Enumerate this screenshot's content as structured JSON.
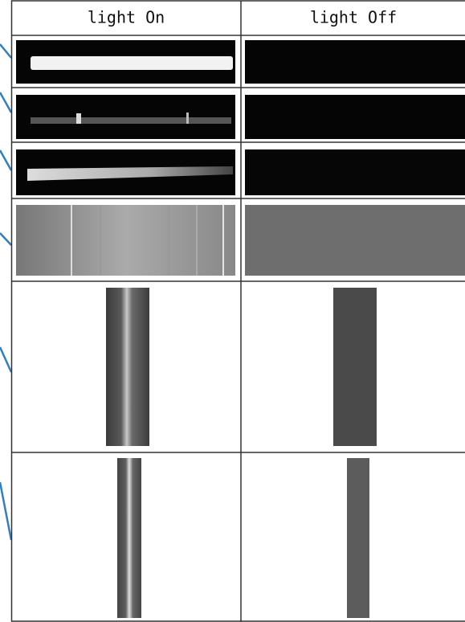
{
  "table": {
    "header": [
      "light On",
      "light Off"
    ]
  }
}
